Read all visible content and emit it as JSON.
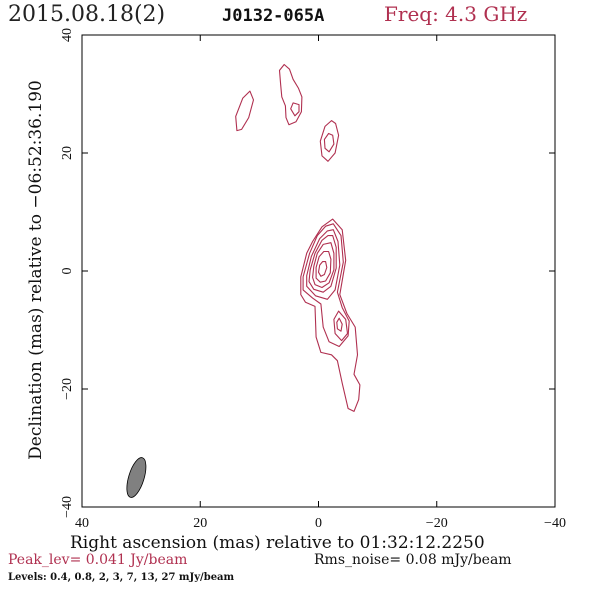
{
  "header": {
    "date": "2015.08.18(2)",
    "source": "J0132-065A",
    "freq": "Freq: 4.3 GHz"
  },
  "footer": {
    "peak": "Peak_lev=  0.041 Jy/beam",
    "rms": "Rms_noise= 0.08 mJy/beam",
    "levels": "Levels: 0.4, 0.8,   2,   3,   7,  13,  27 mJy/beam"
  },
  "colors": {
    "contour": "#b03050",
    "beam": "#808080"
  },
  "chart_data": {
    "type": "contour",
    "xlabel": "Right ascension (mas) relative to 01:32:12.2250",
    "ylabel": "Declination (mas) relative to −06:52:36.190",
    "xlim": [
      40,
      -40
    ],
    "ylim": [
      -40,
      40
    ],
    "xticks": [
      40,
      20,
      0,
      -20,
      -40
    ],
    "yticks": [
      -40,
      -20,
      0,
      20,
      40
    ],
    "xtick_labels": [
      "40",
      "20",
      "0",
      "−20",
      "−40"
    ],
    "ytick_labels": [
      "−40",
      "−20",
      "0",
      "20",
      "40"
    ],
    "levels_mJy": [
      0.4,
      0.8,
      2,
      3,
      7,
      13,
      27
    ],
    "beam": {
      "ra": 30.8,
      "dec": -35,
      "major": 7.0,
      "minor": 2.6,
      "angle_deg": 17
    },
    "contours": [
      {
        "name": "core-1",
        "points": [
          [
            -2.4,
            8.8
          ],
          [
            -4.0,
            7.0
          ],
          [
            -4.6,
            1.8
          ],
          [
            -3.6,
            -4.0
          ],
          [
            -4.8,
            -7.2
          ],
          [
            -6.2,
            -9.5
          ],
          [
            -6.6,
            -14.2
          ],
          [
            -6.0,
            -17.5
          ],
          [
            -7.0,
            -19.3
          ],
          [
            -6.8,
            -21.8
          ],
          [
            -6.0,
            -23.8
          ],
          [
            -5.0,
            -23.3
          ],
          [
            -4.0,
            -19.0
          ],
          [
            -3.2,
            -15.2
          ],
          [
            -2.2,
            -14.2
          ],
          [
            -0.4,
            -13.8
          ],
          [
            0.4,
            -11.2
          ],
          [
            0.6,
            -6.0
          ],
          [
            2.2,
            -5.3
          ],
          [
            3.0,
            -4.0
          ],
          [
            3.0,
            -1.0
          ],
          [
            2.0,
            3.0
          ],
          [
            1.0,
            5.0
          ],
          [
            -0.6,
            7.5
          ],
          [
            -2.4,
            8.8
          ]
        ]
      },
      {
        "name": "core-2",
        "points": [
          [
            -2.5,
            8.0
          ],
          [
            -3.8,
            6.0
          ],
          [
            -4.2,
            1.5
          ],
          [
            -3.2,
            -3.6
          ],
          [
            -4.0,
            -6.2
          ],
          [
            -5.2,
            -8.5
          ],
          [
            -5.0,
            -11.0
          ],
          [
            -3.5,
            -12.8
          ],
          [
            -1.8,
            -12.0
          ],
          [
            -0.8,
            -9.5
          ],
          [
            -0.4,
            -5.6
          ],
          [
            1.0,
            -4.6
          ],
          [
            2.6,
            -3.2
          ],
          [
            2.6,
            -1.0
          ],
          [
            1.5,
            3.0
          ],
          [
            0.2,
            6.0
          ],
          [
            -1.2,
            7.6
          ],
          [
            -2.5,
            8.0
          ]
        ]
      },
      {
        "name": "core-3",
        "points": [
          [
            -2.5,
            7.0
          ],
          [
            -3.3,
            5.0
          ],
          [
            -3.6,
            1.0
          ],
          [
            -2.8,
            -3.2
          ],
          [
            -1.5,
            -4.8
          ],
          [
            0.5,
            -4.2
          ],
          [
            2.0,
            -2.6
          ],
          [
            2.0,
            -0.8
          ],
          [
            1.2,
            2.5
          ],
          [
            -0.2,
            5.5
          ],
          [
            -1.5,
            6.8
          ],
          [
            -2.5,
            7.0
          ]
        ]
      },
      {
        "name": "core-4",
        "points": [
          [
            -2.4,
            6.0
          ],
          [
            -3.0,
            4.0
          ],
          [
            -3.0,
            0.5
          ],
          [
            -2.1,
            -2.6
          ],
          [
            -0.8,
            -3.6
          ],
          [
            0.8,
            -3.1
          ],
          [
            1.6,
            -1.8
          ],
          [
            1.4,
            0.2
          ],
          [
            0.6,
            3.0
          ],
          [
            -0.6,
            5.2
          ],
          [
            -1.6,
            6.0
          ],
          [
            -2.4,
            6.0
          ]
        ]
      },
      {
        "name": "core-5",
        "points": [
          [
            -2.1,
            4.8
          ],
          [
            -2.6,
            3.0
          ],
          [
            -2.6,
            0.2
          ],
          [
            -1.8,
            -2.0
          ],
          [
            -0.6,
            -2.8
          ],
          [
            0.6,
            -2.3
          ],
          [
            1.0,
            -1.1
          ],
          [
            0.8,
            0.8
          ],
          [
            0.2,
            3.0
          ],
          [
            -0.8,
            4.5
          ],
          [
            -2.1,
            4.8
          ]
        ]
      },
      {
        "name": "core-6",
        "points": [
          [
            -1.7,
            3.3
          ],
          [
            -2.1,
            2.0
          ],
          [
            -2.0,
            -0.3
          ],
          [
            -1.2,
            -1.7
          ],
          [
            -0.3,
            -1.9
          ],
          [
            0.4,
            -1.2
          ],
          [
            0.4,
            0.6
          ],
          [
            -0.1,
            2.4
          ],
          [
            -0.9,
            3.3
          ],
          [
            -1.7,
            3.3
          ]
        ]
      },
      {
        "name": "core-7",
        "points": [
          [
            -1.2,
            1.6
          ],
          [
            -1.4,
            0.6
          ],
          [
            -1.0,
            -0.6
          ],
          [
            -0.4,
            -0.9
          ],
          [
            0.0,
            -0.2
          ],
          [
            -0.2,
            1.0
          ],
          [
            -0.7,
            1.6
          ],
          [
            -1.2,
            1.6
          ]
        ]
      },
      {
        "name": "jet-knot-outer",
        "points": [
          [
            -3.4,
            -6.8
          ],
          [
            -4.6,
            -8.2
          ],
          [
            -4.9,
            -10.6
          ],
          [
            -3.9,
            -11.8
          ],
          [
            -2.8,
            -10.6
          ],
          [
            -2.6,
            -8.2
          ],
          [
            -3.4,
            -6.8
          ]
        ]
      },
      {
        "name": "jet-knot-inner",
        "points": [
          [
            -3.5,
            -8.0
          ],
          [
            -4.0,
            -9.0
          ],
          [
            -3.8,
            -10.2
          ],
          [
            -3.2,
            -9.8
          ],
          [
            -3.1,
            -8.7
          ],
          [
            -3.5,
            -8.0
          ]
        ]
      },
      {
        "name": "north-blob",
        "points": [
          [
            -2.9,
            25.0
          ],
          [
            -3.4,
            23.0
          ],
          [
            -2.8,
            20.0
          ],
          [
            -1.6,
            18.6
          ],
          [
            -0.6,
            19.5
          ],
          [
            -0.3,
            22.0
          ],
          [
            -1.1,
            24.5
          ],
          [
            -2.2,
            25.5
          ],
          [
            -2.9,
            25.0
          ]
        ]
      },
      {
        "name": "north-blob-inner",
        "points": [
          [
            -2.4,
            23.0
          ],
          [
            -2.6,
            21.5
          ],
          [
            -1.8,
            20.2
          ],
          [
            -1.1,
            20.8
          ],
          [
            -1.0,
            22.3
          ],
          [
            -1.7,
            23.3
          ],
          [
            -2.4,
            23.0
          ]
        ]
      },
      {
        "name": "left-blob",
        "points": [
          [
            13.8,
            23.8
          ],
          [
            14.0,
            26.2
          ],
          [
            12.8,
            29.3
          ],
          [
            11.6,
            30.5
          ],
          [
            11.0,
            29.0
          ],
          [
            11.8,
            26.0
          ],
          [
            13.0,
            24.0
          ],
          [
            13.8,
            23.8
          ]
        ]
      },
      {
        "name": "top-blob",
        "points": [
          [
            6.4,
            31.5
          ],
          [
            6.6,
            34.0
          ],
          [
            5.8,
            35.0
          ],
          [
            4.9,
            34.2
          ],
          [
            4.3,
            32.5
          ],
          [
            3.4,
            31.0
          ],
          [
            2.8,
            29.5
          ],
          [
            2.9,
            27.0
          ],
          [
            3.8,
            25.3
          ],
          [
            5.0,
            24.8
          ],
          [
            5.5,
            26.0
          ],
          [
            5.6,
            28.0
          ],
          [
            6.2,
            29.5
          ],
          [
            6.4,
            31.5
          ]
        ]
      },
      {
        "name": "top-blob-inner",
        "points": [
          [
            4.3,
            28.5
          ],
          [
            4.7,
            27.5
          ],
          [
            4.0,
            26.3
          ],
          [
            3.3,
            27.0
          ],
          [
            3.3,
            28.2
          ],
          [
            4.3,
            28.5
          ]
        ]
      }
    ]
  }
}
